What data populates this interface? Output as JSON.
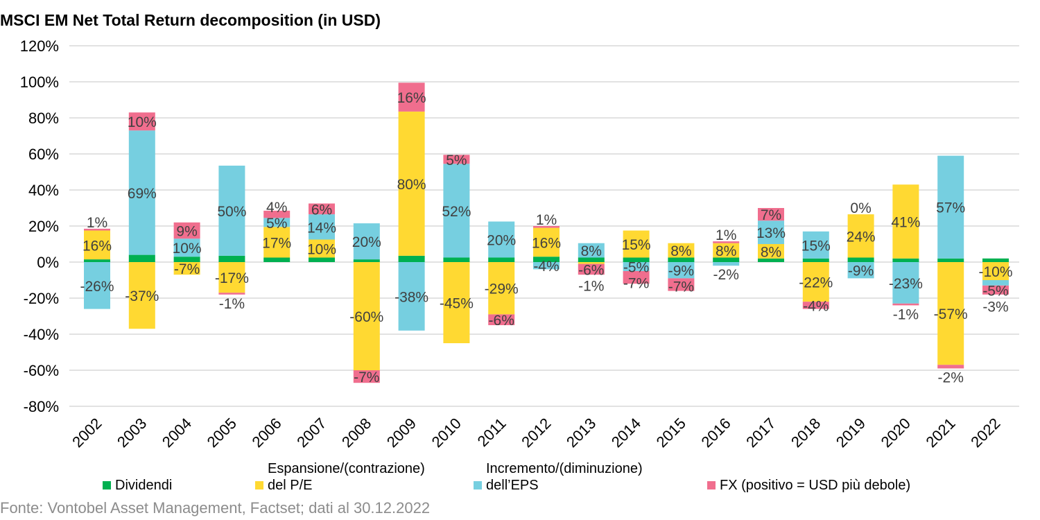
{
  "chart_data": {
    "type": "bar",
    "stacked": true,
    "title": "MSCI EM Net Total Return decomposition (in USD)",
    "ylim": [
      -80,
      120
    ],
    "yticks": [
      -80,
      -60,
      -40,
      -20,
      0,
      20,
      40,
      60,
      80,
      100,
      120
    ],
    "ytick_labels": [
      "-80%",
      "-60%",
      "-40%",
      "-20%",
      "0%",
      "20%",
      "40%",
      "60%",
      "80%",
      "100%",
      "120%"
    ],
    "grid": true,
    "legend_position": "bottom",
    "categories": [
      "2002",
      "2003",
      "2004",
      "2005",
      "2006",
      "2007",
      "2008",
      "2009",
      "2010",
      "2011",
      "2012",
      "2013",
      "2014",
      "2015",
      "2016",
      "2017",
      "2018",
      "2019",
      "2020",
      "2021",
      "2022"
    ],
    "series": [
      {
        "name": "Dividendi",
        "color": "#00b050",
        "labeled": false,
        "values": [
          1.5,
          4,
          3,
          3.5,
          2.5,
          2.5,
          1.5,
          3.5,
          2.5,
          2.5,
          3,
          2.5,
          2.5,
          2.5,
          2.5,
          2,
          2,
          2.5,
          2,
          2,
          2
        ]
      },
      {
        "name": "Espansione/(contrazione)\ndel P/E",
        "color": "#ffd932",
        "labeled": true,
        "values": [
          16,
          -37,
          -7,
          -17,
          17,
          10,
          -60,
          80,
          -45,
          -29,
          16,
          -1,
          15,
          8,
          8,
          8,
          -22,
          24,
          41,
          -57,
          -10
        ]
      },
      {
        "name": "Incremento/(diminuzione)\ndell’EPS",
        "color": "#76cfe0",
        "labeled": true,
        "values": [
          -26,
          69,
          10,
          50,
          5,
          14,
          20,
          -38,
          52,
          20,
          -4,
          8,
          -5,
          -9,
          -2,
          13,
          15,
          -9,
          -23,
          57,
          -3
        ]
      },
      {
        "name": "FX (positivo = USD più debole)",
        "color": "#f06e8e",
        "labeled": true,
        "values": [
          1,
          10,
          9,
          -1,
          4,
          6,
          -7,
          16,
          5,
          -6,
          1,
          -6,
          -7,
          -7,
          1,
          7,
          -4,
          0,
          -1,
          -2,
          -5
        ]
      }
    ]
  },
  "source": "Fonte: Vontobel Asset Management, Factset; dati al 30.12.2022"
}
